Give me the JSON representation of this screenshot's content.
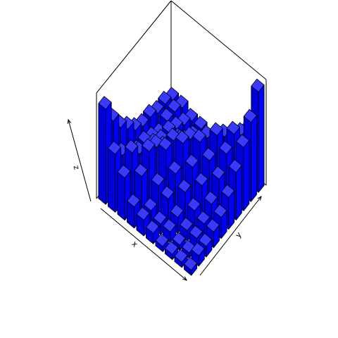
{
  "chart_data": {
    "type": "bar3d",
    "title": "",
    "xlabel": "x",
    "ylabel": "y",
    "zlabel": "z",
    "nx": 10,
    "ny": 10,
    "zlim": [
      0,
      10
    ],
    "bar_color": "#0000FF",
    "edge_color": "#000000",
    "z": [
      [
        9.0,
        7.0,
        5.5,
        4.5,
        3.5,
        3.0,
        3.0,
        2.5,
        2.5,
        2.0
      ],
      [
        5.5,
        4.5,
        3.5,
        3.0,
        3.0,
        2.5,
        2.0,
        2.5,
        2.5,
        2.0
      ],
      [
        4.0,
        5.5,
        4.5,
        3.5,
        3.5,
        3.0,
        3.0,
        2.5,
        2.0,
        1.5
      ],
      [
        2.0,
        4.0,
        5.5,
        5.0,
        4.0,
        3.5,
        3.0,
        2.0,
        1.5,
        1.5
      ],
      [
        1.5,
        1.5,
        3.0,
        5.5,
        5.5,
        4.5,
        3.5,
        2.0,
        1.0,
        1.0
      ],
      [
        1.0,
        1.0,
        2.5,
        4.0,
        6.0,
        5.5,
        4.0,
        2.5,
        1.5,
        0.5
      ],
      [
        0.5,
        1.0,
        1.5,
        3.0,
        4.5,
        6.0,
        5.5,
        3.5,
        1.5,
        0.5
      ],
      [
        0.5,
        0.5,
        1.0,
        2.0,
        3.5,
        5.0,
        6.5,
        5.5,
        4.0,
        2.0
      ],
      [
        0.5,
        0.5,
        1.0,
        1.5,
        2.5,
        4.0,
        5.5,
        6.5,
        5.5,
        5.0
      ],
      [
        0.5,
        1.0,
        1.0,
        1.5,
        2.0,
        3.0,
        4.5,
        6.0,
        7.5,
        9.5
      ]
    ]
  }
}
